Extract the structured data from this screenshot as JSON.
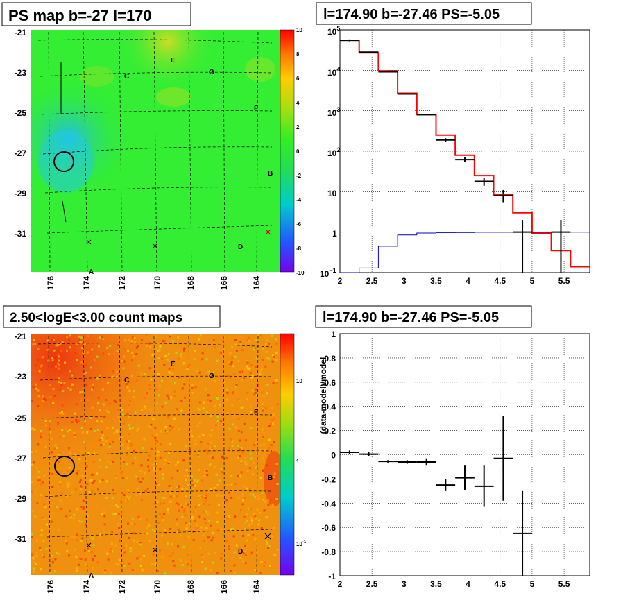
{
  "panels": {
    "tl_title": "PS map b=-27 l=170",
    "tr_title": "l=174.90 b=-27.46 PS=-5.05",
    "bl_title": "2.50<logE<3.00 count maps",
    "br_title": "l=174.90 b=-27.46 PS=-5.05"
  },
  "maps": {
    "y_ticks": [
      "-21",
      "-23",
      "-25",
      "-27",
      "-29",
      "-31"
    ],
    "x_ticks": [
      "176",
      "174",
      "172",
      "170",
      "168",
      "166",
      "164"
    ],
    "landmarks": [
      "A",
      "B",
      "C",
      "D",
      "E",
      "F",
      "G"
    ],
    "ps_colorbar_ticks": [
      "10",
      "8",
      "6",
      "4",
      "2",
      "0",
      "-2",
      "-4",
      "-6",
      "-8",
      "-10"
    ],
    "count_colorbar_ticks": [
      "10",
      "1"
    ],
    "count_colorbar_tick_low": "10",
    "count_colorbar_tick_low_exp": "-1",
    "colors": {
      "ps_base": "#33ee33",
      "count_base": "#f0900f",
      "circle": "#000000"
    }
  },
  "chart_data": [
    {
      "type": "line",
      "title": "l=174.90 b=-27.46 PS=-5.05",
      "xlim": [
        2,
        5.9
      ],
      "ylim": [
        0.1,
        100000
      ],
      "yscale": "log",
      "x_ticks": [
        "2",
        "2.5",
        "3",
        "3.5",
        "4",
        "4.5",
        "5",
        "5.5"
      ],
      "grid": true,
      "series": [
        {
          "color": "#ff0000",
          "kind": "step",
          "edges": [
            2,
            2.3,
            2.6,
            2.9,
            3.2,
            3.5,
            3.8,
            4.1,
            4.4,
            4.7,
            5.0,
            5.3,
            5.6,
            5.9
          ],
          "values": [
            55000,
            27000,
            9700,
            2700,
            800,
            250,
            80,
            25,
            8.5,
            3.0,
            0.95,
            0.35,
            0.14
          ]
        },
        {
          "color": "#0000cc",
          "kind": "step",
          "edges": [
            2,
            2.3,
            2.6,
            2.9,
            3.2,
            3.5,
            3.8,
            4.1,
            4.4,
            4.7,
            5.0,
            5.3,
            5.6,
            5.9
          ],
          "values": [
            0.1,
            0.13,
            0.45,
            0.85,
            0.95,
            0.97,
            0.98,
            0.99,
            0.99,
            1.0,
            1.0,
            1.0,
            1.0
          ]
        },
        {
          "color": "#000000",
          "kind": "points",
          "x": [
            2.15,
            2.45,
            2.75,
            3.05,
            3.35,
            3.65,
            3.95,
            4.25,
            4.55,
            4.85,
            5.45
          ],
          "xerr": 0.15,
          "y": [
            55000,
            28000,
            9200,
            2600,
            800,
            190,
            62,
            18,
            8,
            1.0,
            1.0
          ],
          "ylo": [
            52000,
            27000,
            9000,
            2500,
            770,
            170,
            55,
            14,
            5.5,
            0.01,
            0.01
          ],
          "yhi": [
            58000,
            29000,
            9500,
            2700,
            830,
            210,
            70,
            22,
            11,
            2.0,
            2.0
          ]
        }
      ]
    },
    {
      "type": "scatter",
      "title": "l=174.90 b=-27.46 PS=-5.05",
      "ylabel": "(data-model)/model",
      "xlim": [
        2,
        5.9
      ],
      "ylim": [
        -1,
        1
      ],
      "x_ticks": [
        "2",
        "2.5",
        "3",
        "3.5",
        "4",
        "4.5",
        "5",
        "5.5"
      ],
      "y_ticks": [
        "1",
        "0.8",
        "0.6",
        "0.4",
        "0.2",
        "0",
        "-0.2",
        "-0.4",
        "-0.6",
        "-0.8",
        "-1"
      ],
      "grid": true,
      "x": [
        2.15,
        2.45,
        2.75,
        3.05,
        3.35,
        3.65,
        3.95,
        4.25,
        4.55,
        4.85
      ],
      "xerr": 0.15,
      "y": [
        0.02,
        0.005,
        -0.055,
        -0.06,
        -0.06,
        -0.25,
        -0.19,
        -0.26,
        -0.03,
        -0.65
      ],
      "yerr": [
        0.015,
        0.015,
        0.01,
        0.015,
        0.03,
        0.05,
        0.1,
        0.17,
        0.35,
        0.35
      ]
    }
  ]
}
